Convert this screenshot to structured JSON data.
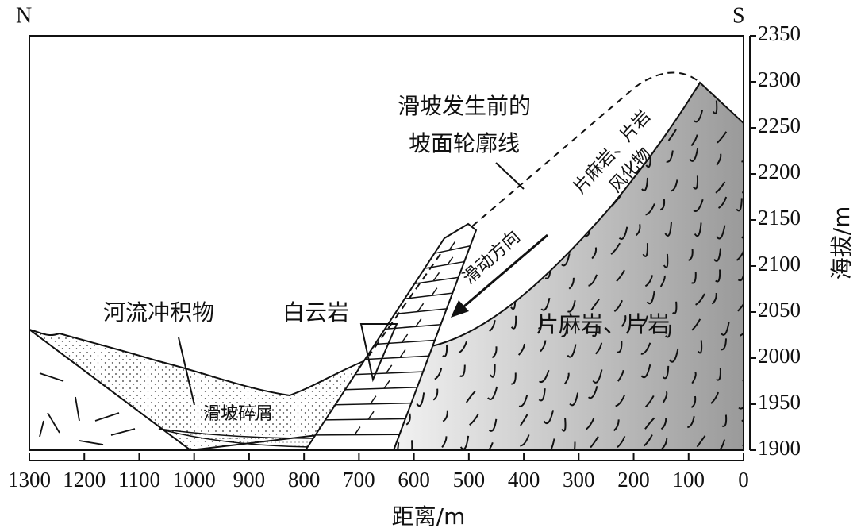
{
  "header": {
    "north": "N",
    "south": "S"
  },
  "x_axis": {
    "title": "距离/m",
    "ticks": [
      1300,
      1200,
      1100,
      1000,
      900,
      800,
      700,
      600,
      500,
      400,
      300,
      200,
      100,
      0
    ]
  },
  "y_axis": {
    "title": "海拔/m",
    "ticks": [
      1900,
      1950,
      2000,
      2050,
      2100,
      2150,
      2200,
      2250,
      2300,
      2350
    ]
  },
  "annotations": {
    "profile_line": [
      "滑坡发生前的",
      "坡面轮廓线"
    ],
    "weathered": [
      "片麻岩、片岩",
      "风化物"
    ],
    "slide_direction": "滑动方向",
    "alluvium": "河流冲积物",
    "dolomite": "白云岩",
    "gneiss": "片麻岩、片岩",
    "debris": "滑坡碎屑"
  }
}
